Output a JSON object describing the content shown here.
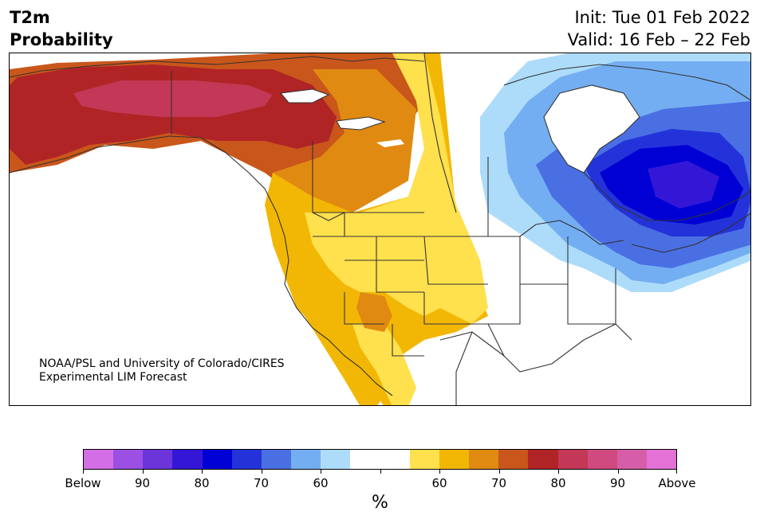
{
  "header": {
    "title_line1": "T2m",
    "title_line2": "Probability",
    "init_text": "Init: Tue 01 Feb 2022",
    "valid_text": "Valid: 16 Feb – 22 Feb"
  },
  "map": {
    "credit_line1": "NOAA/PSL and University of Colorado/CIRES",
    "credit_line2": "Experimental LIM Forecast"
  },
  "colorbar": {
    "colors": [
      "#d46ee6",
      "#9c4fe3",
      "#6c35d9",
      "#3417d6",
      "#0000d4",
      "#2433d9",
      "#4a6fe3",
      "#74aef2",
      "#addcfa",
      "#ffffff",
      "#ffffff",
      "#ffe04d",
      "#f2b705",
      "#e08a12",
      "#c9561a",
      "#b02426",
      "#c23856",
      "#d14a7f",
      "#d65ea8",
      "#e371d6"
    ],
    "tick_labels": [
      "Below",
      "90",
      "80",
      "70",
      "60",
      "",
      "60",
      "70",
      "80",
      "90",
      "Above"
    ],
    "units": "%"
  }
}
